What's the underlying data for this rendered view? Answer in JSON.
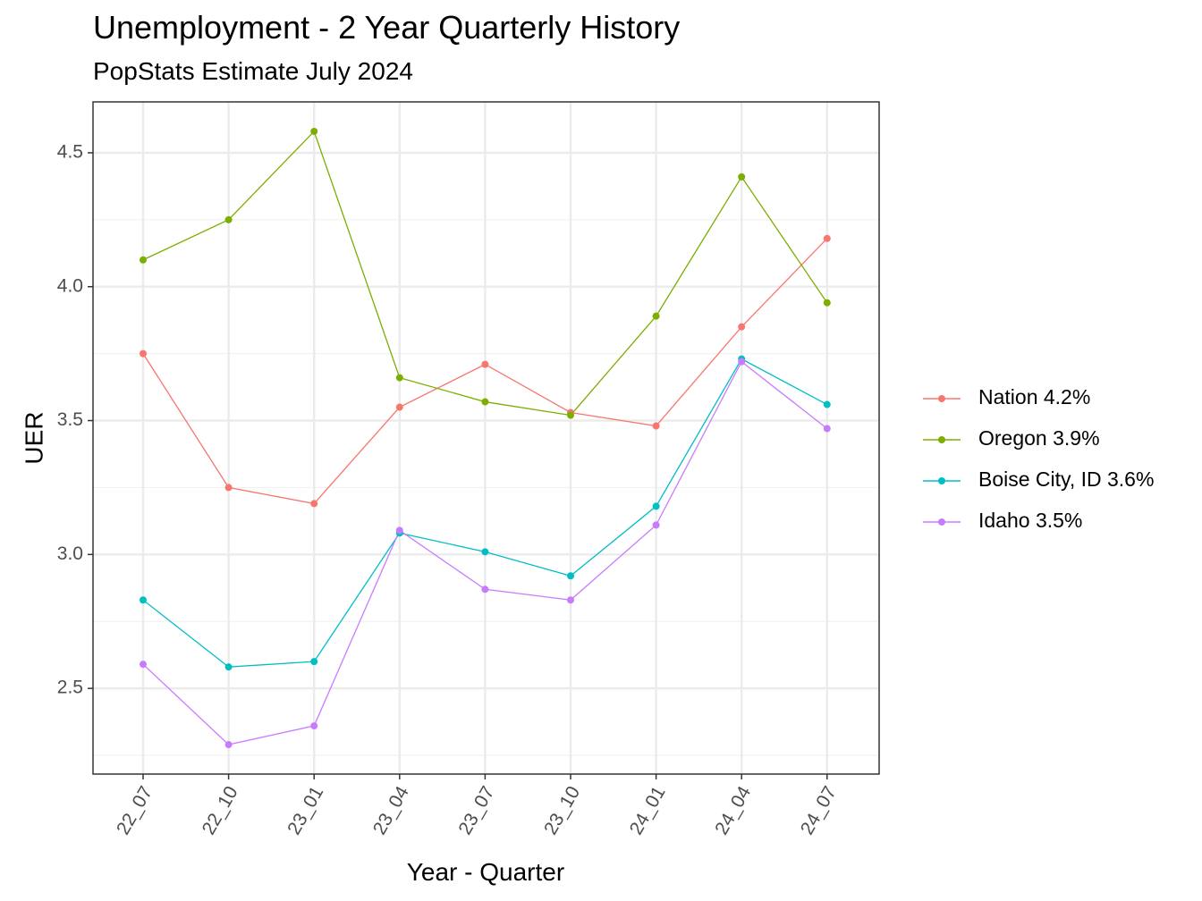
{
  "chart_data": {
    "type": "line",
    "title": "Unemployment - 2 Year Quarterly History",
    "subtitle": "PopStats Estimate July 2024",
    "xlabel": "Year - Quarter",
    "ylabel": "UER",
    "categories": [
      "22_07",
      "22_10",
      "23_01",
      "23_04",
      "23_07",
      "23_10",
      "24_01",
      "24_04",
      "24_07"
    ],
    "y_ticks": [
      "2.5",
      "3.0",
      "3.5",
      "4.0",
      "4.5"
    ],
    "ylim": [
      2.18,
      4.69
    ],
    "grid": true,
    "legend_position": "right",
    "series": [
      {
        "name": "Nation 4.2%",
        "color": "#F8766D",
        "values": [
          3.75,
          3.25,
          3.19,
          3.55,
          3.71,
          3.53,
          3.48,
          3.85,
          4.18
        ]
      },
      {
        "name": "Oregon 3.9%",
        "color": "#7CAE00",
        "values": [
          4.1,
          4.25,
          4.58,
          3.66,
          3.57,
          3.52,
          3.89,
          4.41,
          3.94
        ]
      },
      {
        "name": "Boise City, ID 3.6%",
        "color": "#00BFC4",
        "values": [
          2.83,
          2.58,
          2.6,
          3.08,
          3.01,
          2.92,
          3.18,
          3.73,
          3.56
        ]
      },
      {
        "name": "Idaho 3.5%",
        "color": "#C77CFF",
        "values": [
          2.59,
          2.29,
          2.36,
          3.09,
          2.87,
          2.83,
          3.11,
          3.72,
          3.47
        ]
      }
    ]
  }
}
